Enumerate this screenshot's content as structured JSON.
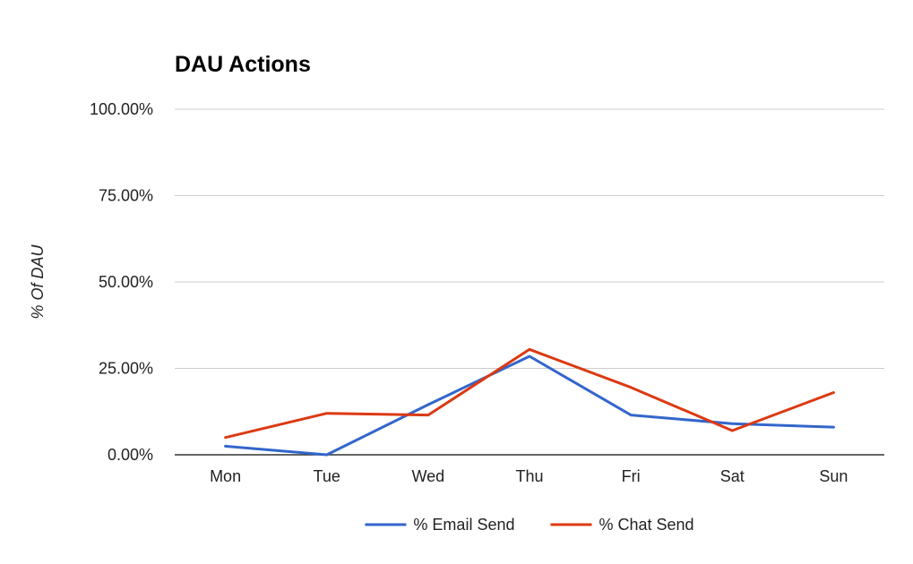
{
  "chart_data": {
    "type": "line",
    "title": "DAU Actions",
    "xlabel": "",
    "ylabel": "% Of DAU",
    "categories": [
      "Mon",
      "Tue",
      "Wed",
      "Thu",
      "Fri",
      "Sat",
      "Sun"
    ],
    "ylim": [
      0,
      100
    ],
    "yticks": [
      "0.00%",
      "25.00%",
      "50.00%",
      "75.00%",
      "100.00%"
    ],
    "grid": true,
    "legend_position": "bottom",
    "series": [
      {
        "name": "% Email Send",
        "color": "#3366cc",
        "values": [
          2.5,
          0,
          14.5,
          28.5,
          11.5,
          9,
          8
        ]
      },
      {
        "name": "% Chat Send",
        "color": "#dc3912",
        "values": [
          5,
          12,
          11.5,
          30.5,
          19.5,
          7,
          18
        ]
      }
    ]
  }
}
